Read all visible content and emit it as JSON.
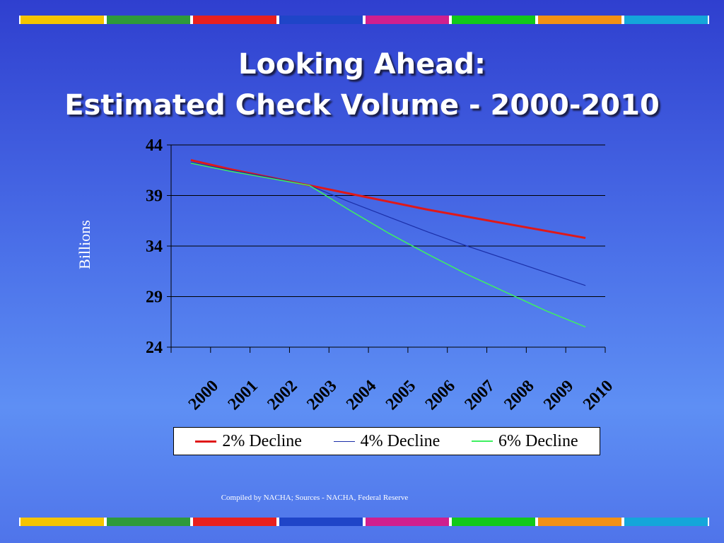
{
  "title_lines": [
    "Looking Ahead:",
    "Estimated Check Volume - 2000-2010"
  ],
  "footer": "Compiled by NACHA; Sources - NACHA, Federal Reserve",
  "stripe_colors": [
    "#f5c400",
    "#2e9a3a",
    "#e8201e",
    "#1f45c8",
    "#d01f8e",
    "#12c81a",
    "#f29114",
    "#14a6da"
  ],
  "chart_data": {
    "type": "line",
    "title": "",
    "xlabel": "",
    "ylabel": "Billions",
    "x": [
      "2000",
      "2001",
      "2002",
      "2003",
      "2004",
      "2005",
      "2006",
      "2007",
      "2008",
      "2009",
      "2010"
    ],
    "ylim": [
      24,
      44
    ],
    "yticks": [
      24,
      29,
      34,
      39,
      44
    ],
    "grid": true,
    "legend_position": "bottom",
    "series": [
      {
        "name": "2% Decline",
        "color": "#e01818",
        "width": 3,
        "values": [
          42.5,
          41.6,
          40.8,
          40.0,
          39.2,
          38.4,
          37.6,
          36.9,
          36.2,
          35.5,
          34.8
        ]
      },
      {
        "name": "4% Decline",
        "color": "#1b2fa8",
        "width": 1.2,
        "values": [
          42.3,
          41.5,
          40.8,
          40.0,
          38.4,
          36.9,
          35.4,
          34.0,
          32.7,
          31.4,
          30.1
        ]
      },
      {
        "name": "6% Decline",
        "color": "#3ef060",
        "width": 1.5,
        "values": [
          42.2,
          41.4,
          40.7,
          40.0,
          37.6,
          35.3,
          33.2,
          31.2,
          29.4,
          27.6,
          26.0
        ]
      }
    ]
  }
}
